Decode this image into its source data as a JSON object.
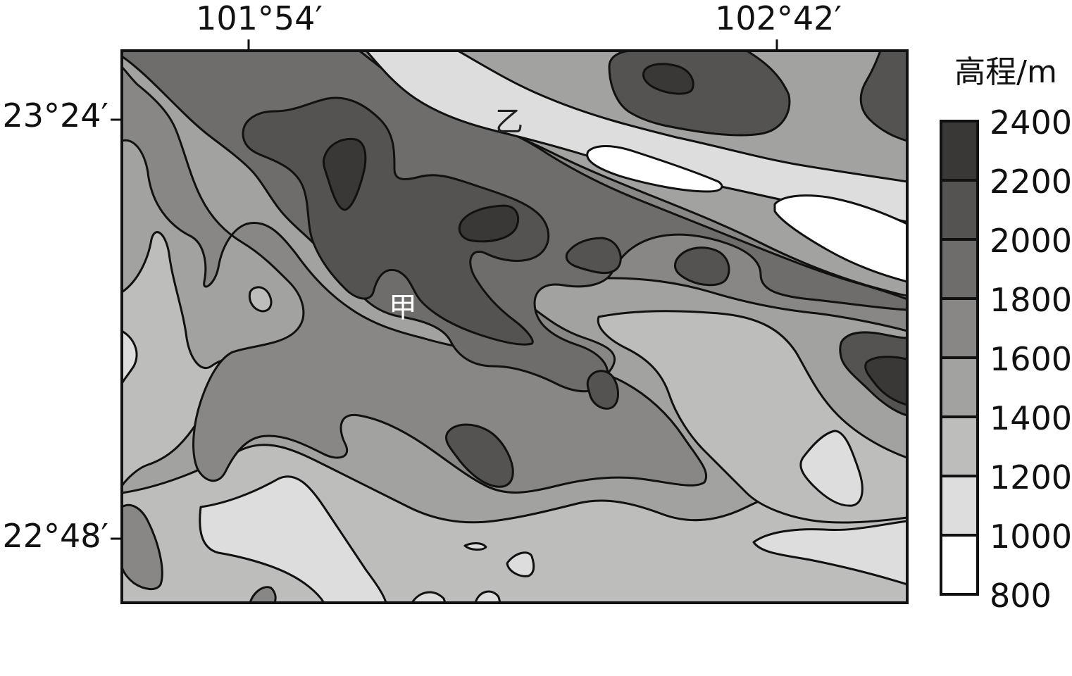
{
  "coordinates": {
    "longitudes": [
      "101°54′",
      "102°42′"
    ],
    "latitudes": [
      "23°24′",
      "22°48′"
    ]
  },
  "places": {
    "jia": "甲",
    "yi": "乙"
  },
  "legend": {
    "title": "高程/m",
    "values": [
      "2400",
      "2200",
      "2000",
      "1800",
      "1600",
      "1400",
      "1200",
      "1000",
      "800"
    ],
    "bands": [
      {
        "range": "2200-2400",
        "color": "#393837"
      },
      {
        "range": "2000-2200",
        "color": "#545352"
      },
      {
        "range": "1800-2000",
        "color": "#6e6d6c"
      },
      {
        "range": "1600-1800",
        "color": "#888786"
      },
      {
        "range": "1400-1600",
        "color": "#a2a2a1"
      },
      {
        "range": "1200-1400",
        "color": "#bdbdbc"
      },
      {
        "range": "1000-1200",
        "color": "#dcdddc"
      },
      {
        "range": "800-1000",
        "color": "#ffffff"
      }
    ]
  }
}
